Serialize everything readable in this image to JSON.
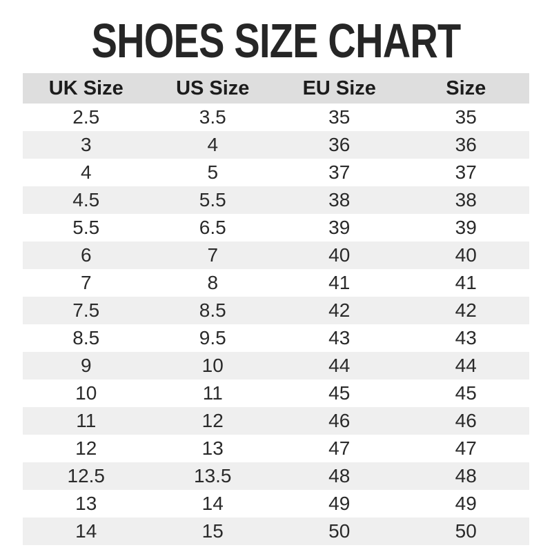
{
  "title": "SHOES SIZE CHART",
  "chart_data": {
    "type": "table",
    "title": "SHOES SIZE CHART",
    "columns": [
      "UK Size",
      "US Size",
      "EU Size",
      "Size"
    ],
    "rows": [
      [
        "2.5",
        "3.5",
        "35",
        "35"
      ],
      [
        "3",
        "4",
        "36",
        "36"
      ],
      [
        "4",
        "5",
        "37",
        "37"
      ],
      [
        "4.5",
        "5.5",
        "38",
        "38"
      ],
      [
        "5.5",
        "6.5",
        "39",
        "39"
      ],
      [
        "6",
        "7",
        "40",
        "40"
      ],
      [
        "7",
        "8",
        "41",
        "41"
      ],
      [
        "7.5",
        "8.5",
        "42",
        "42"
      ],
      [
        "8.5",
        "9.5",
        "43",
        "43"
      ],
      [
        "9",
        "10",
        "44",
        "44"
      ],
      [
        "10",
        "11",
        "45",
        "45"
      ],
      [
        "11",
        "12",
        "46",
        "46"
      ],
      [
        "12",
        "13",
        "47",
        "47"
      ],
      [
        "12.5",
        "13.5",
        "48",
        "48"
      ],
      [
        "13",
        "14",
        "49",
        "49"
      ],
      [
        "14",
        "15",
        "50",
        "50"
      ]
    ],
    "layout": {
      "striped": true,
      "first_data_row_background": "white",
      "header_background": "gray"
    }
  },
  "colors": {
    "header_bg": "#dedede",
    "stripe_bg": "#efefef",
    "title_text": "#262626",
    "cell_text": "#2a2a2a",
    "page_bg": "#ffffff"
  }
}
